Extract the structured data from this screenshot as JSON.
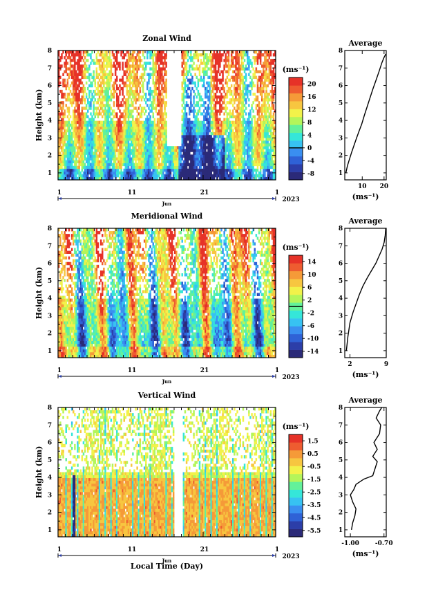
{
  "chart_data": [
    {
      "type": "heatmap",
      "title": "Zonal Wind",
      "ylabel": "Height (km)",
      "ylim": [
        0.6,
        8
      ],
      "yticks": [
        "1",
        "2",
        "3",
        "4",
        "5",
        "6",
        "7",
        "8"
      ],
      "xticks": [
        "1",
        "11",
        "21",
        "1"
      ],
      "month": "Jun",
      "year": "2023",
      "unit": "(ms⁻¹)",
      "colorbar_ticks": [
        "20",
        "16",
        "12",
        "8",
        "4",
        "0",
        "-4",
        "-8"
      ],
      "colorbar_range": [
        -10,
        22
      ],
      "colorbar_line": 0,
      "colors": [
        "#2b2a78",
        "#2c3ea8",
        "#2f62d6",
        "#3a8ff0",
        "#37c2f2",
        "#35e6d9",
        "#63f19a",
        "#b4f55a",
        "#f2f24a",
        "#f7c640",
        "#f59a38",
        "#ee5c30",
        "#e63228"
      ]
    },
    {
      "type": "line",
      "title": "Average",
      "ylim": [
        0.6,
        8
      ],
      "xlim": [
        2,
        21
      ],
      "xticks": [
        "10",
        "20"
      ],
      "yticks": [
        "1",
        "2",
        "3",
        "4",
        "5",
        "6",
        "7",
        "8"
      ],
      "xlabel": "(ms⁻¹)",
      "x": [
        2.5,
        3.2,
        4.2,
        5.2,
        6.3,
        7.4,
        8.6,
        9.8,
        11.0,
        12.3,
        13.6,
        14.9,
        16.3,
        17.7,
        19.0,
        20.0,
        20.8
      ],
      "y": [
        1.0,
        1.4,
        1.8,
        2.2,
        2.6,
        3.0,
        3.4,
        3.8,
        4.3,
        4.8,
        5.3,
        5.8,
        6.3,
        6.8,
        7.3,
        7.6,
        7.8
      ]
    },
    {
      "type": "heatmap",
      "title": "Meridional Wind",
      "ylabel": "Height (km)",
      "ylim": [
        0.6,
        8
      ],
      "yticks": [
        "1",
        "2",
        "3",
        "4",
        "5",
        "6",
        "7",
        "8"
      ],
      "xticks": [
        "1",
        "11",
        "21",
        "1"
      ],
      "month": "Jun",
      "year": "2023",
      "unit": "(ms⁻¹)",
      "colorbar_ticks": [
        "14",
        "10",
        "6",
        "2",
        "-2",
        "-6",
        "-10",
        "-14"
      ],
      "colorbar_range": [
        -16,
        16
      ],
      "colorbar_line": 0,
      "colors": [
        "#2b2a78",
        "#2c3ea8",
        "#2f62d6",
        "#3a8ff0",
        "#37c2f2",
        "#35e6d9",
        "#63f19a",
        "#b4f55a",
        "#f2f24a",
        "#f7c640",
        "#f59a38",
        "#ee5c30",
        "#e63228"
      ]
    },
    {
      "type": "line",
      "title": "Average",
      "ylim": [
        0.6,
        8
      ],
      "xlim": [
        1,
        9
      ],
      "xticks": [
        "2",
        "9"
      ],
      "yticks": [
        "1",
        "2",
        "3",
        "4",
        "5",
        "6",
        "7",
        "8"
      ],
      "xlabel": "(ms⁻¹)",
      "x": [
        1.3,
        1.6,
        2.0,
        2.6,
        3.2,
        3.8,
        4.5,
        5.4,
        6.2,
        7.0,
        7.6,
        8.2,
        8.6,
        8.8,
        8.9
      ],
      "y": [
        1.0,
        1.8,
        2.6,
        3.2,
        3.7,
        4.2,
        4.7,
        5.2,
        5.6,
        6.0,
        6.4,
        6.8,
        7.2,
        7.6,
        8.0
      ]
    },
    {
      "type": "heatmap",
      "title": "Vertical Wind",
      "ylabel": "Height (km)",
      "xlabel": "Local Time (Day)",
      "ylim": [
        0.6,
        8
      ],
      "yticks": [
        "1",
        "2",
        "3",
        "4",
        "5",
        "6",
        "7",
        "8"
      ],
      "xticks": [
        "1",
        "11",
        "21",
        "1"
      ],
      "month": "Jun",
      "year": "2023",
      "unit": "(ms⁻¹)",
      "colorbar_ticks": [
        "1.5",
        "0.5",
        "-0.5",
        "-1.5",
        "-2.5",
        "-3.5",
        "-4.5",
        "-5.5"
      ],
      "colorbar_range": [
        -6,
        2
      ],
      "colors": [
        "#2b2a78",
        "#2c3ea8",
        "#2f62d6",
        "#3a8ff0",
        "#37c2f2",
        "#35e6d9",
        "#63f19a",
        "#b4f55a",
        "#f2f24a",
        "#f7c640",
        "#f59a38",
        "#ee5c30",
        "#e63228"
      ]
    },
    {
      "type": "line",
      "title": "Average",
      "ylim": [
        0.6,
        8
      ],
      "xlim": [
        -1.05,
        -0.68
      ],
      "xticks": [
        "-1.00",
        "-0.70"
      ],
      "yticks": [
        "1",
        "2",
        "3",
        "4",
        "5",
        "6",
        "7",
        "8"
      ],
      "xlabel": "(ms⁻¹)",
      "x": [
        -0.99,
        -0.98,
        -0.96,
        -0.95,
        -0.98,
        -1.0,
        -0.97,
        -0.95,
        -0.88,
        -0.8,
        -0.78,
        -0.76,
        -0.8,
        -0.76,
        -0.79,
        -0.74,
        -0.73,
        -0.77,
        -0.74,
        -0.72
      ],
      "y": [
        1.0,
        1.4,
        1.8,
        2.2,
        2.6,
        3.0,
        3.3,
        3.6,
        3.9,
        4.1,
        4.5,
        4.9,
        5.2,
        5.6,
        6.0,
        6.5,
        7.0,
        7.4,
        7.8,
        8.0
      ]
    }
  ]
}
